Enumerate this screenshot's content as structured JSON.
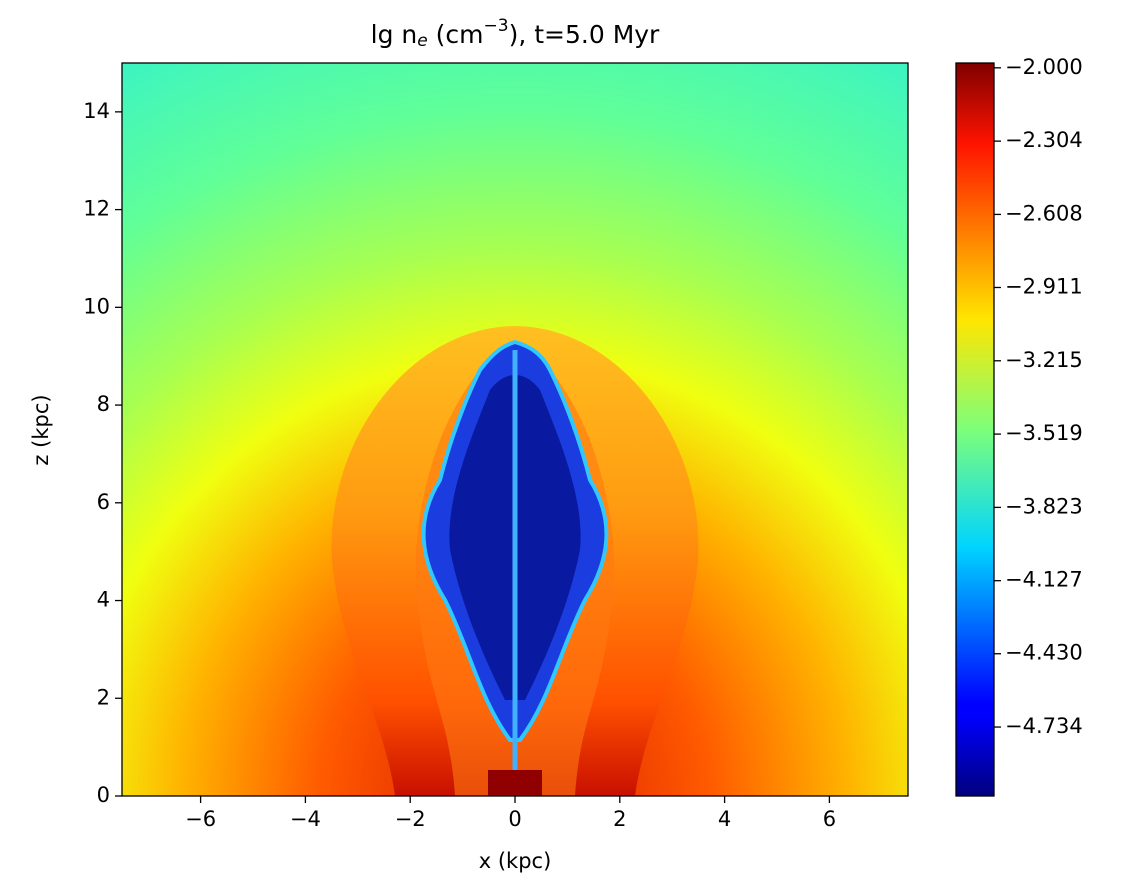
{
  "chart_data": {
    "type": "heatmap",
    "title_parts": [
      "lg n",
      "e",
      " (cm",
      "−3",
      "), t=5.0 Myr"
    ],
    "x_label": "x (kpc)",
    "y_label": "z (kpc)",
    "xlim": [
      -7.5,
      7.5
    ],
    "xticks": [
      {
        "value": -6,
        "label": "−6"
      },
      {
        "value": -4,
        "label": "−4"
      },
      {
        "value": -2,
        "label": "−2"
      },
      0,
      2,
      4,
      6
    ],
    "ylim": [
      0,
      15
    ],
    "yticks": [
      0,
      2,
      4,
      6,
      8,
      10,
      12,
      14
    ],
    "colormap": "jet",
    "clim": [
      -5.02,
      -1.98
    ],
    "cticks": [
      {
        "value": -2.0,
        "label": "−2.000"
      },
      {
        "value": -2.304,
        "label": "−2.304"
      },
      {
        "value": -2.608,
        "label": "−2.608"
      },
      {
        "value": -2.911,
        "label": "−2.911"
      },
      {
        "value": -3.215,
        "label": "−3.215"
      },
      {
        "value": -3.519,
        "label": "−3.519"
      },
      {
        "value": -3.823,
        "label": "−3.823"
      },
      {
        "value": -4.127,
        "label": "−4.127"
      },
      {
        "value": -4.43,
        "label": "−4.430"
      },
      {
        "value": -4.734,
        "label": "−4.734"
      }
    ]
  }
}
